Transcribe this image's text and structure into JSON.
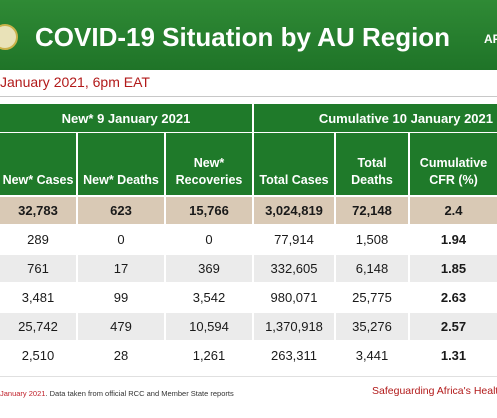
{
  "header": {
    "title": "COVID-19 Situation by AU Region",
    "tag": "AF"
  },
  "report_date": "January 2021, 6pm EAT",
  "bands": {
    "new": "New* 9 January 2021",
    "cumulative": "Cumulative 10 January 2021"
  },
  "columns": [
    [
      "New* Cases"
    ],
    [
      "New* Deaths"
    ],
    [
      "New*",
      "Recoveries"
    ],
    [
      "Total Cases"
    ],
    [
      "Total",
      "Deaths"
    ],
    [
      "Cumulative",
      "CFR (%)"
    ]
  ],
  "rows": [
    [
      "32,783",
      "623",
      "15,766",
      "3,024,819",
      "72,148",
      "2.4"
    ],
    [
      "289",
      "0",
      "0",
      "77,914",
      "1,508",
      "1.94"
    ],
    [
      "761",
      "17",
      "369",
      "332,605",
      "6,148",
      "1.85"
    ],
    [
      "3,481",
      "99",
      "3,542",
      "980,071",
      "25,775",
      "2.63"
    ],
    [
      "25,742",
      "479",
      "10,594",
      "1,370,918",
      "35,276",
      "2.57"
    ],
    [
      "2,510",
      "28",
      "1,261",
      "263,311",
      "3,441",
      "1.31"
    ]
  ],
  "footer": {
    "note_red": "January 2021",
    "note_rest": ". Data taken from official RCC and Member State reports",
    "slogan": "Safeguarding Africa's Health"
  },
  "colors": {
    "header_green": "#1f7428",
    "table_green": "#1f7a2a",
    "total_row": "#d9c9b5",
    "accent_red": "#b21a1a"
  }
}
